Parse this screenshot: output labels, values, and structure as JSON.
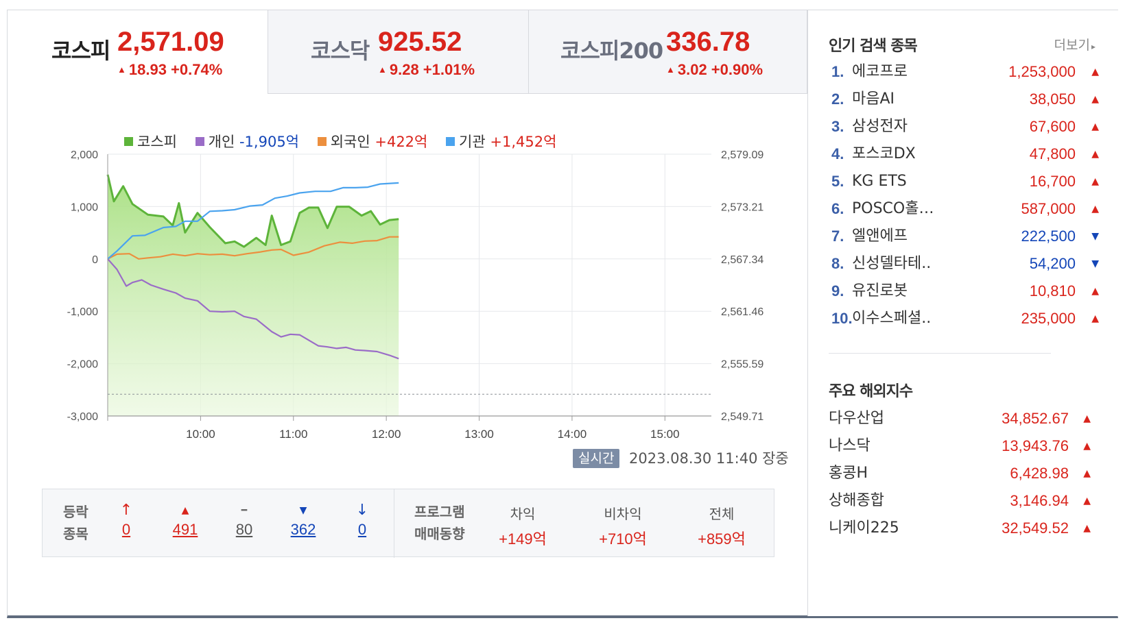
{
  "tabs": [
    {
      "name": "코스피",
      "value": "2,571.09",
      "change": "18.93 +0.74%"
    },
    {
      "name": "코스닥",
      "value": "925.52",
      "change": "9.28 +1.01%"
    },
    {
      "name": "코스피200",
      "value": "336.78",
      "change": "3.02 +0.90%"
    }
  ],
  "legend": [
    {
      "label": "코스피",
      "value": "",
      "color": "#5db43a"
    },
    {
      "label": "개인",
      "value": "-1,905억",
      "color": "#9a6cc7"
    },
    {
      "label": "외국인",
      "value": "+422억",
      "color": "#ec8f3e"
    },
    {
      "label": "기관",
      "value": "+1,452억",
      "color": "#4aa3ee"
    }
  ],
  "chart_data": {
    "type": "line",
    "left_axis_ticks": [
      "2,000",
      "1,000",
      "0",
      "-1,000",
      "-2,000",
      "-3,000"
    ],
    "right_axis_ticks": [
      "2,579.09",
      "2,573.21",
      "2,567.34",
      "2,561.46",
      "2,555.59",
      "2,549.71"
    ],
    "x_ticks": [
      "10:00",
      "11:00",
      "12:00",
      "13:00",
      "14:00",
      "15:00"
    ],
    "ylim_left": [
      -3000,
      2000
    ],
    "ylim_right": [
      2549.71,
      2579.09
    ],
    "x_range_minutes": [
      540,
      930
    ],
    "reference_line_right": 2552.15,
    "series": [
      {
        "name": "코스피",
        "axis": "right",
        "color": "#5db43a",
        "fill": true,
        "x": [
          540,
          544,
          550,
          556,
          566,
          576,
          582,
          586,
          590,
          598,
          606,
          616,
          622,
          628,
          636,
          642,
          646,
          652,
          658,
          664,
          670,
          676,
          682,
          688,
          696,
          704,
          710,
          716,
          722,
          728
        ],
        "y": [
          2576.8,
          2573.8,
          2575.5,
          2573.5,
          2572.3,
          2572.1,
          2571.1,
          2573.6,
          2570.3,
          2572.5,
          2570.9,
          2569.1,
          2569.3,
          2568.7,
          2569.7,
          2568.9,
          2572.2,
          2568.9,
          2569.3,
          2572.5,
          2573.1,
          2573.1,
          2570.8,
          2573.2,
          2573.2,
          2572.2,
          2572.7,
          2571.2,
          2571.7,
          2571.8
        ]
      },
      {
        "name": "개인",
        "axis": "left",
        "color": "#9a6cc7",
        "x": [
          540,
          546,
          552,
          556,
          562,
          568,
          576,
          584,
          590,
          598,
          606,
          614,
          622,
          628,
          636,
          646,
          652,
          658,
          664,
          676,
          682,
          688,
          694,
          700,
          706,
          714,
          722,
          728
        ],
        "y": [
          0,
          -200,
          -520,
          -450,
          -400,
          -500,
          -580,
          -650,
          -750,
          -800,
          -1000,
          -1010,
          -1000,
          -1100,
          -1150,
          -1390,
          -1490,
          -1440,
          -1450,
          -1660,
          -1680,
          -1710,
          -1690,
          -1740,
          -1750,
          -1770,
          -1840,
          -1905
        ]
      },
      {
        "name": "외국인",
        "axis": "left",
        "color": "#ec8f3e",
        "x": [
          540,
          546,
          554,
          560,
          566,
          574,
          582,
          590,
          598,
          606,
          614,
          622,
          630,
          638,
          646,
          652,
          660,
          670,
          680,
          690,
          698,
          706,
          714,
          722,
          728
        ],
        "y": [
          0,
          90,
          100,
          0,
          20,
          40,
          90,
          60,
          100,
          80,
          90,
          60,
          100,
          130,
          170,
          180,
          70,
          130,
          250,
          320,
          300,
          340,
          350,
          420,
          422
        ]
      },
      {
        "name": "기관",
        "axis": "left",
        "color": "#4aa3ee",
        "x": [
          540,
          546,
          556,
          564,
          576,
          584,
          590,
          598,
          606,
          614,
          622,
          632,
          640,
          648,
          656,
          664,
          674,
          684,
          692,
          700,
          708,
          716,
          728
        ],
        "y": [
          0,
          150,
          440,
          450,
          600,
          620,
          720,
          720,
          910,
          920,
          940,
          1010,
          1030,
          1160,
          1200,
          1260,
          1290,
          1290,
          1360,
          1360,
          1370,
          1430,
          1452
        ]
      }
    ]
  },
  "status": {
    "realtime": "실시간",
    "timestamp": "2023.08.30 11:40 장중"
  },
  "breadth": {
    "label1": "등락",
    "label2": "종목",
    "items": [
      {
        "icon": "↑",
        "value": "0",
        "color": "#d9241c"
      },
      {
        "icon": "▲",
        "value": "491",
        "color": "#d9241c"
      },
      {
        "icon": "━",
        "value": "80",
        "color": "#555555"
      },
      {
        "icon": "▼",
        "value": "362",
        "color": "#1446b8"
      },
      {
        "icon": "↓",
        "value": "0",
        "color": "#1446b8"
      }
    ]
  },
  "program": {
    "label1": "프로그램",
    "label2": "매매동향",
    "items": [
      {
        "label": "차익",
        "value": "+149억"
      },
      {
        "label": "비차익",
        "value": "+710억"
      },
      {
        "label": "전체",
        "value": "+859억"
      }
    ]
  },
  "popular": {
    "title": "인기 검색 종목",
    "more": "더보기",
    "items": [
      {
        "rank": "1.",
        "name": "에코프로",
        "price": "1,253,000",
        "dir": "up"
      },
      {
        "rank": "2.",
        "name": "마음AI",
        "price": "38,050",
        "dir": "up"
      },
      {
        "rank": "3.",
        "name": "삼성전자",
        "price": "67,600",
        "dir": "up"
      },
      {
        "rank": "4.",
        "name": "포스코DX",
        "price": "47,800",
        "dir": "up"
      },
      {
        "rank": "5.",
        "name": "KG ETS",
        "price": "16,700",
        "dir": "up"
      },
      {
        "rank": "6.",
        "name": "POSCO홀…",
        "price": "587,000",
        "dir": "up"
      },
      {
        "rank": "7.",
        "name": "엘앤에프",
        "price": "222,500",
        "dir": "down"
      },
      {
        "rank": "8.",
        "name": "신성델타테..",
        "price": "54,200",
        "dir": "down"
      },
      {
        "rank": "9.",
        "name": "유진로봇",
        "price": "10,810",
        "dir": "up"
      },
      {
        "rank": "10.",
        "name": "이수스페셜..",
        "price": "235,000",
        "dir": "up"
      }
    ]
  },
  "world": {
    "title": "주요 해외지수",
    "items": [
      {
        "name": "다우산업",
        "value": "34,852.67"
      },
      {
        "name": "나스닥",
        "value": "13,943.76"
      },
      {
        "name": "홍콩H",
        "value": "6,428.98"
      },
      {
        "name": "상해종합",
        "value": "3,146.94"
      },
      {
        "name": "니케이225",
        "value": "32,549.52"
      }
    ]
  },
  "colors": {
    "up": "#d9241c",
    "down": "#1446b8"
  }
}
